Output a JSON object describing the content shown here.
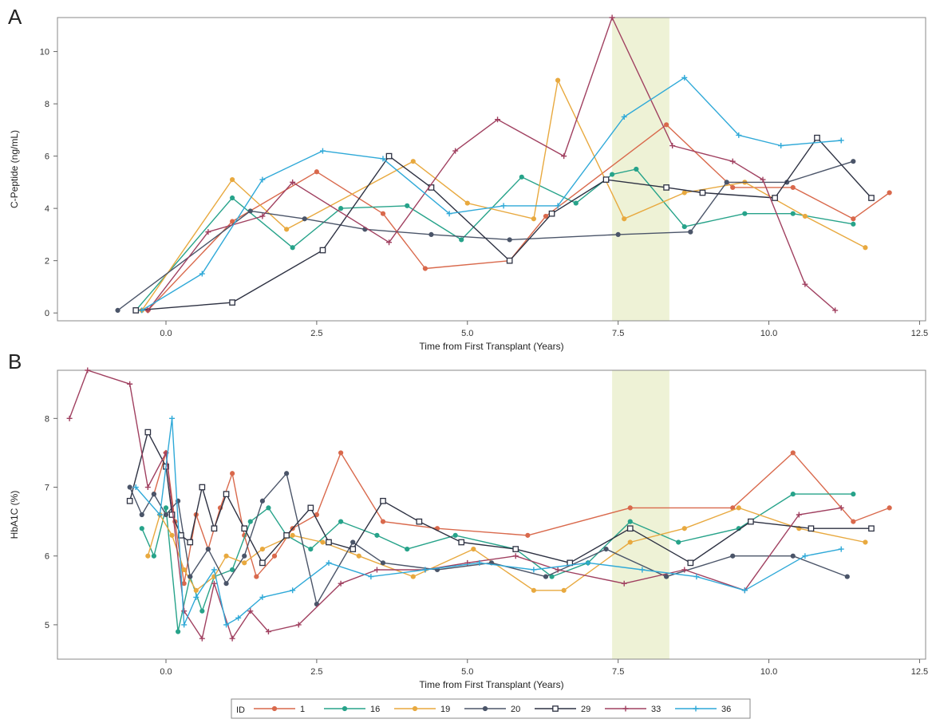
{
  "legend": {
    "title": "ID",
    "entries": [
      {
        "label": "1",
        "color": "#d9694c",
        "marker": "circle"
      },
      {
        "label": "16",
        "color": "#27a38a",
        "marker": "circle"
      },
      {
        "label": "19",
        "color": "#e8a93f",
        "marker": "circle"
      },
      {
        "label": "20",
        "color": "#4b5569",
        "marker": "circle"
      },
      {
        "label": "29",
        "color": "#2d3142",
        "marker": "square"
      },
      {
        "label": "33",
        "color": "#a04060",
        "marker": "plus"
      },
      {
        "label": "36",
        "color": "#2fa9d8",
        "marker": "plus"
      }
    ]
  },
  "shaded_band": {
    "x_start": 7.4,
    "x_end": 8.35,
    "color": "#eef2d6"
  },
  "chart_data": [
    {
      "panel": "A",
      "type": "line",
      "xlabel": "Time from First Transplant (Years)",
      "ylabel": "C-Peptide (ng/mL)",
      "xlim": [
        -1.8,
        12.6
      ],
      "ylim": [
        -0.3,
        11.3
      ],
      "xticks": [
        "0.0",
        "2.5",
        "5.0",
        "7.5",
        "10.0",
        "12.5"
      ],
      "xtick_values": [
        0,
        2.5,
        5,
        7.5,
        10,
        12.5
      ],
      "yticks": [
        "0",
        "2",
        "4",
        "6",
        "8",
        "10"
      ],
      "ytick_values": [
        0,
        2,
        4,
        6,
        8,
        10
      ],
      "series": [
        {
          "name": "1",
          "x": [
            -0.3,
            1.1,
            2.5,
            3.6,
            4.3,
            5.7,
            6.3,
            8.3,
            9.4,
            10.4,
            11.4,
            12.0
          ],
          "y": [
            0.1,
            3.5,
            5.4,
            3.8,
            1.7,
            2.0,
            3.7,
            7.2,
            4.8,
            4.8,
            3.6,
            4.6
          ]
        },
        {
          "name": "16",
          "x": [
            -0.5,
            1.1,
            2.1,
            2.9,
            4.0,
            4.9,
            5.9,
            6.8,
            7.4,
            7.8,
            8.6,
            9.6,
            10.4,
            11.4
          ],
          "y": [
            0.1,
            4.4,
            2.5,
            4.0,
            4.1,
            2.8,
            5.2,
            4.2,
            5.3,
            5.5,
            3.3,
            3.8,
            3.8,
            3.4
          ]
        },
        {
          "name": "19",
          "x": [
            -0.4,
            1.1,
            2.0,
            4.1,
            5.0,
            6.1,
            6.5,
            7.6,
            8.6,
            9.6,
            10.6,
            11.6
          ],
          "y": [
            0.1,
            5.1,
            3.2,
            5.8,
            4.2,
            3.6,
            8.9,
            3.6,
            4.6,
            5.0,
            3.7,
            2.5
          ]
        },
        {
          "name": "20",
          "x": [
            -0.8,
            1.4,
            2.3,
            3.3,
            4.4,
            5.7,
            7.5,
            8.7,
            9.3,
            10.3,
            11.4
          ],
          "y": [
            0.1,
            3.9,
            3.6,
            3.2,
            3.0,
            2.8,
            3.0,
            3.1,
            5.0,
            5.0,
            5.8
          ]
        },
        {
          "name": "29",
          "x": [
            -0.5,
            1.1,
            2.6,
            3.7,
            4.4,
            5.7,
            6.4,
            7.3,
            8.3,
            8.9,
            10.1,
            10.8,
            11.7
          ],
          "y": [
            0.1,
            0.4,
            2.4,
            6.0,
            4.8,
            2.0,
            3.8,
            5.1,
            4.8,
            4.6,
            4.4,
            6.7,
            4.4
          ]
        },
        {
          "name": "33",
          "x": [
            -0.3,
            0.7,
            1.6,
            2.1,
            3.7,
            4.8,
            5.5,
            6.6,
            7.4,
            8.4,
            9.4,
            9.9,
            10.6,
            11.1
          ],
          "y": [
            0.1,
            3.1,
            3.7,
            5.0,
            2.7,
            6.2,
            7.4,
            6.0,
            11.3,
            6.4,
            5.8,
            5.1,
            1.1,
            0.1
          ]
        },
        {
          "name": "36",
          "x": [
            -0.4,
            0.6,
            1.6,
            2.6,
            3.6,
            4.7,
            5.6,
            6.5,
            7.6,
            8.6,
            9.5,
            10.2,
            11.2
          ],
          "y": [
            0.1,
            1.5,
            5.1,
            6.2,
            5.9,
            3.8,
            4.1,
            4.1,
            7.5,
            9.0,
            6.8,
            6.4,
            6.6
          ]
        }
      ]
    },
    {
      "panel": "B",
      "type": "line",
      "xlabel": "Time from First Transplant (Years)",
      "ylabel": "HbA1C (%)",
      "xlim": [
        -1.8,
        12.6
      ],
      "ylim": [
        4.5,
        8.7
      ],
      "xticks": [
        "0.0",
        "2.5",
        "5.0",
        "7.5",
        "10.0",
        "12.5"
      ],
      "xtick_values": [
        0,
        2.5,
        5,
        7.5,
        10,
        12.5
      ],
      "yticks": [
        "5",
        "6",
        "7",
        "8"
      ],
      "ytick_values": [
        5,
        6,
        7,
        8
      ],
      "series": [
        {
          "name": "1",
          "x": [
            -0.2,
            0.0,
            0.15,
            0.3,
            0.5,
            0.7,
            0.9,
            1.1,
            1.3,
            1.5,
            1.8,
            2.1,
            2.5,
            2.9,
            3.6,
            4.5,
            6.0,
            7.7,
            9.4,
            10.4,
            11.4,
            12.0
          ],
          "y": [
            6.9,
            7.5,
            6.5,
            5.6,
            6.6,
            6.1,
            6.7,
            7.2,
            6.3,
            5.7,
            6.0,
            6.4,
            6.6,
            7.5,
            6.5,
            6.4,
            6.3,
            6.7,
            6.7,
            7.5,
            6.5,
            6.7
          ]
        },
        {
          "name": "16",
          "x": [
            -0.4,
            -0.2,
            0.0,
            0.2,
            0.4,
            0.6,
            0.8,
            1.1,
            1.4,
            1.7,
            2.0,
            2.4,
            2.9,
            3.5,
            4.0,
            4.8,
            5.8,
            6.4,
            7.0,
            7.7,
            8.5,
            9.5,
            10.4,
            11.4
          ],
          "y": [
            6.4,
            6.0,
            6.7,
            4.9,
            5.7,
            5.2,
            5.7,
            5.8,
            6.5,
            6.7,
            6.3,
            6.1,
            6.5,
            6.3,
            6.1,
            6.3,
            6.1,
            5.7,
            5.9,
            6.5,
            6.2,
            6.4,
            6.9,
            6.9
          ]
        },
        {
          "name": "19",
          "x": [
            -0.3,
            -0.1,
            0.1,
            0.3,
            0.5,
            0.8,
            1.0,
            1.3,
            1.6,
            2.1,
            2.6,
            3.2,
            4.1,
            5.1,
            6.1,
            6.6,
            7.7,
            8.6,
            9.5,
            10.5,
            11.6
          ],
          "y": [
            6.0,
            6.6,
            6.3,
            5.8,
            5.5,
            5.7,
            6.0,
            5.9,
            6.1,
            6.3,
            6.2,
            6.0,
            5.7,
            6.1,
            5.5,
            5.5,
            6.2,
            6.4,
            6.7,
            6.4,
            6.2
          ]
        },
        {
          "name": "20",
          "x": [
            -0.6,
            -0.4,
            -0.2,
            0.0,
            0.2,
            0.4,
            0.7,
            1.0,
            1.3,
            1.6,
            2.0,
            2.5,
            3.1,
            3.6,
            4.5,
            5.4,
            6.3,
            7.3,
            8.3,
            9.4,
            10.4,
            11.3
          ],
          "y": [
            7.0,
            6.6,
            6.9,
            6.6,
            6.8,
            5.7,
            6.1,
            5.6,
            6.0,
            6.8,
            7.2,
            5.3,
            6.2,
            5.9,
            5.8,
            5.9,
            5.7,
            6.1,
            5.7,
            6.0,
            6.0,
            5.7
          ]
        },
        {
          "name": "29",
          "x": [
            -0.6,
            -0.3,
            0.0,
            0.1,
            0.25,
            0.4,
            0.6,
            0.8,
            1.0,
            1.3,
            1.6,
            2.0,
            2.4,
            2.7,
            3.1,
            3.6,
            4.2,
            4.9,
            5.8,
            6.7,
            7.7,
            8.7,
            9.7,
            10.7,
            11.7
          ],
          "y": [
            6.8,
            7.8,
            7.3,
            6.6,
            6.3,
            6.2,
            7.0,
            6.4,
            6.9,
            6.4,
            5.9,
            6.3,
            6.7,
            6.2,
            6.1,
            6.8,
            6.5,
            6.2,
            6.1,
            5.9,
            6.4,
            5.9,
            6.5,
            6.4,
            6.4
          ]
        },
        {
          "name": "33",
          "x": [
            -1.6,
            -1.3,
            -0.6,
            -0.3,
            0.0,
            0.3,
            0.6,
            0.8,
            1.1,
            1.4,
            1.7,
            2.2,
            2.9,
            3.5,
            4.3,
            5.0,
            5.8,
            6.5,
            7.6,
            8.6,
            9.6,
            10.5,
            11.2
          ],
          "y": [
            8.0,
            8.7,
            8.5,
            7.0,
            7.5,
            5.2,
            4.8,
            5.6,
            4.8,
            5.2,
            4.9,
            5.0,
            5.6,
            5.8,
            5.8,
            5.9,
            6.0,
            5.8,
            5.6,
            5.8,
            5.5,
            6.6,
            6.7
          ]
        },
        {
          "name": "36",
          "x": [
            -0.5,
            -0.1,
            0.1,
            0.3,
            0.5,
            0.8,
            1.0,
            1.2,
            1.6,
            2.1,
            2.7,
            3.4,
            4.3,
            5.2,
            6.1,
            7.0,
            7.9,
            8.8,
            9.6,
            10.6,
            11.2
          ],
          "y": [
            7.0,
            6.6,
            8.0,
            5.0,
            5.4,
            5.8,
            5.0,
            5.1,
            5.4,
            5.5,
            5.9,
            5.7,
            5.8,
            5.9,
            5.8,
            5.9,
            5.8,
            5.7,
            5.5,
            6.0,
            6.1
          ]
        }
      ]
    }
  ]
}
